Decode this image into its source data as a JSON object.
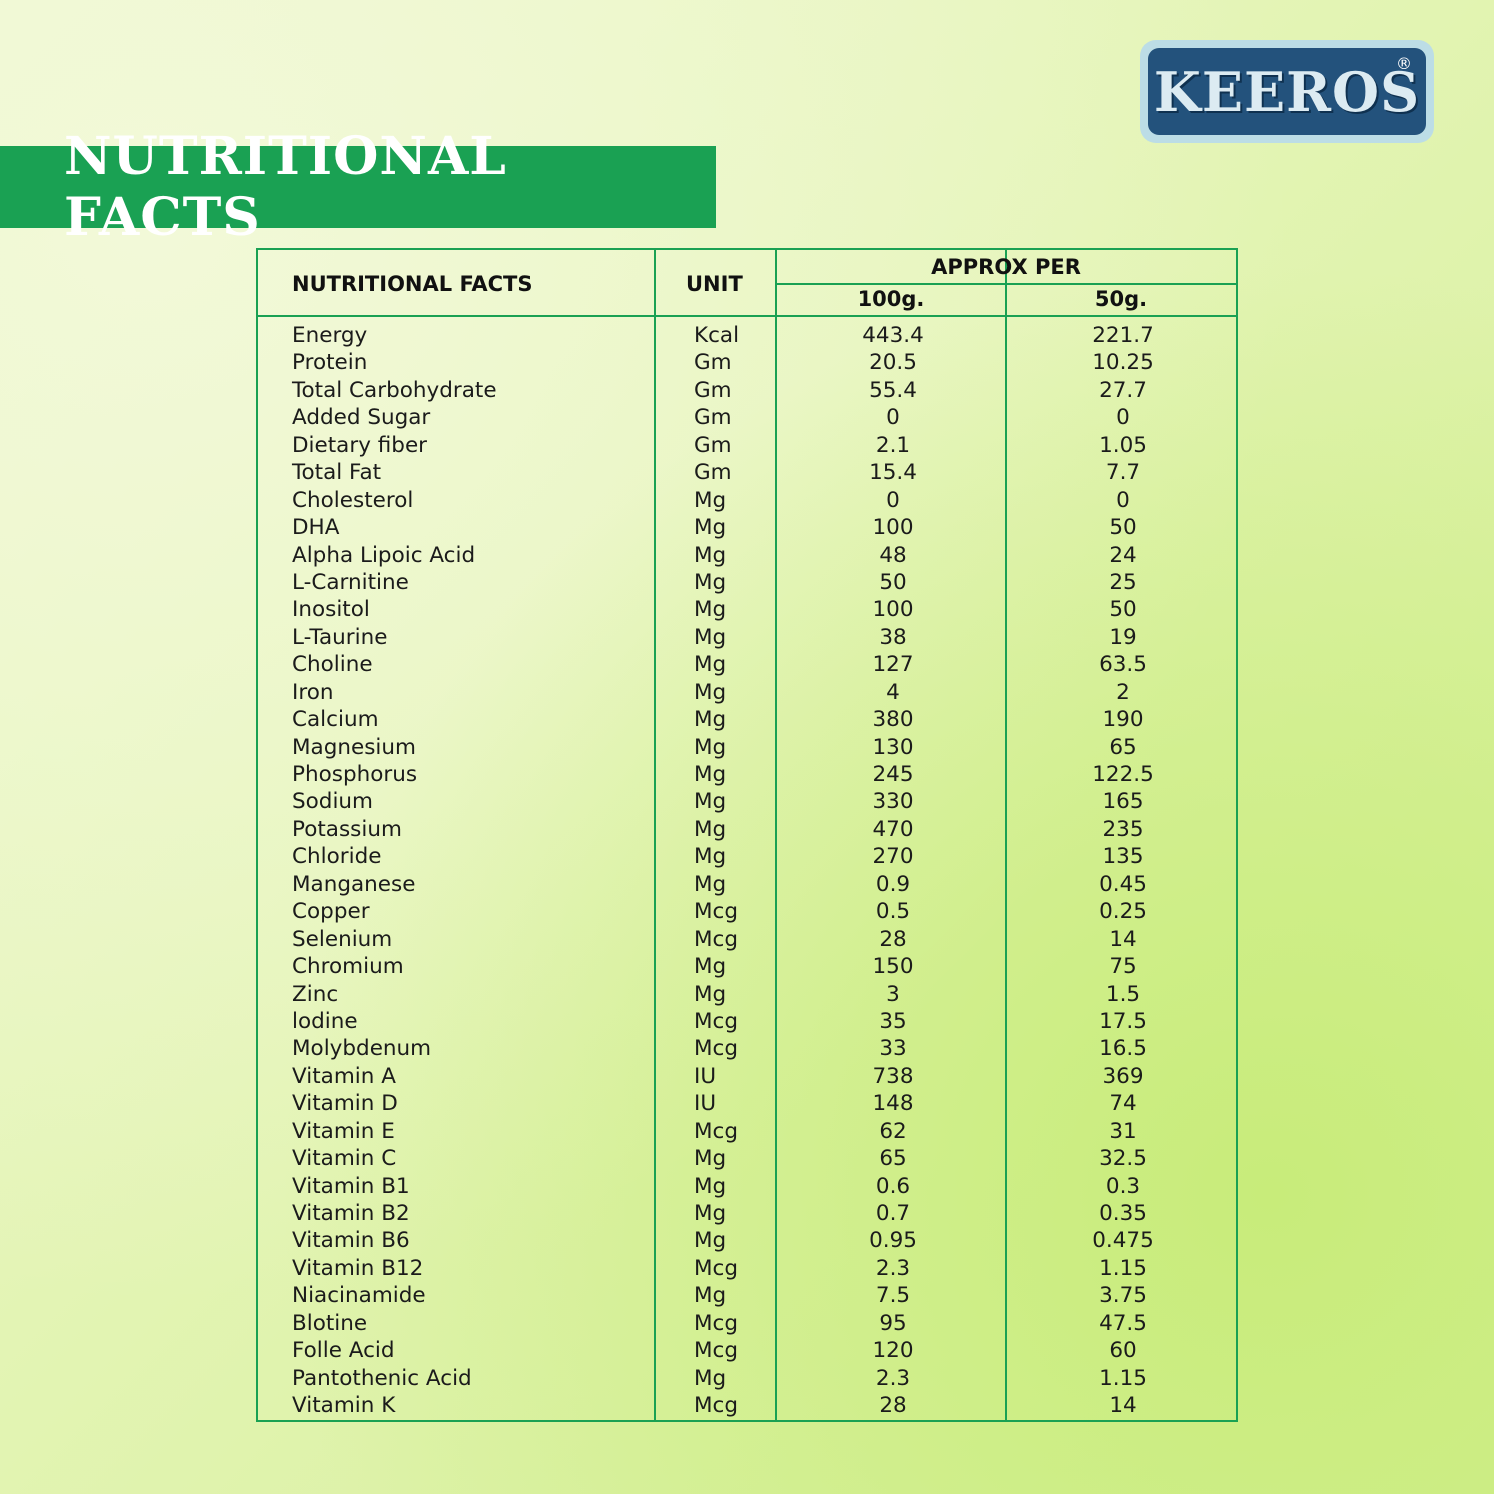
{
  "brand": {
    "logo_text": "KEEROS",
    "reg_mark": "®"
  },
  "banner": {
    "title": "NUTRITIONAL FACTS"
  },
  "table": {
    "headers": {
      "nutrient": "NUTRITIONAL FACTS",
      "unit": "UNIT",
      "approx": "APPROX PER",
      "col_100": "100g.",
      "col_50": "50g."
    },
    "rows": [
      {
        "name": "Energy",
        "unit": "Kcal",
        "v100": "443.4",
        "v50": "221.7"
      },
      {
        "name": "Protein",
        "unit": "Gm",
        "v100": "20.5",
        "v50": "10.25"
      },
      {
        "name": "Total Carbohydrate",
        "unit": "Gm",
        "v100": "55.4",
        "v50": "27.7"
      },
      {
        "name": "Added Sugar",
        "unit": "Gm",
        "v100": "0",
        "v50": "0"
      },
      {
        "name": "Dietary fiber",
        "unit": "Gm",
        "v100": "2.1",
        "v50": "1.05"
      },
      {
        "name": "Total Fat",
        "unit": "Gm",
        "v100": "15.4",
        "v50": "7.7"
      },
      {
        "name": "Cholesterol",
        "unit": "Mg",
        "v100": "0",
        "v50": "0"
      },
      {
        "name": "DHA",
        "unit": "Mg",
        "v100": "100",
        "v50": "50"
      },
      {
        "name": "Alpha Lipoic Acid",
        "unit": "Mg",
        "v100": "48",
        "v50": "24"
      },
      {
        "name": "L-Carnitine",
        "unit": "Mg",
        "v100": "50",
        "v50": "25"
      },
      {
        "name": "Inositol",
        "unit": "Mg",
        "v100": "100",
        "v50": "50"
      },
      {
        "name": "L-Taurine",
        "unit": "Mg",
        "v100": "38",
        "v50": "19"
      },
      {
        "name": "Choline",
        "unit": "Mg",
        "v100": "127",
        "v50": "63.5"
      },
      {
        "name": "Iron",
        "unit": "Mg",
        "v100": "4",
        "v50": "2"
      },
      {
        "name": "Calcium",
        "unit": "Mg",
        "v100": "380",
        "v50": "190"
      },
      {
        "name": "Magnesium",
        "unit": "Mg",
        "v100": "130",
        "v50": "65"
      },
      {
        "name": "Phosphorus",
        "unit": "Mg",
        "v100": "245",
        "v50": "122.5"
      },
      {
        "name": "Sodium",
        "unit": "Mg",
        "v100": "330",
        "v50": "165"
      },
      {
        "name": "Potassium",
        "unit": "Mg",
        "v100": "470",
        "v50": "235"
      },
      {
        "name": "Chloride",
        "unit": "Mg",
        "v100": "270",
        "v50": "135"
      },
      {
        "name": "Manganese",
        "unit": "Mg",
        "v100": "0.9",
        "v50": "0.45"
      },
      {
        "name": "Copper",
        "unit": "Mcg",
        "v100": "0.5",
        "v50": "0.25"
      },
      {
        "name": "Selenium",
        "unit": "Mcg",
        "v100": "28",
        "v50": "14"
      },
      {
        "name": "Chromium",
        "unit": "Mg",
        "v100": "150",
        "v50": "75"
      },
      {
        "name": "Zinc",
        "unit": "Mg",
        "v100": "3",
        "v50": "1.5"
      },
      {
        "name": "lodine",
        "unit": "Mcg",
        "v100": "35",
        "v50": "17.5"
      },
      {
        "name": "Molybdenum",
        "unit": "Mcg",
        "v100": "33",
        "v50": "16.5"
      },
      {
        "name": "Vitamin A",
        "unit": "IU",
        "v100": "738",
        "v50": "369"
      },
      {
        "name": "Vitamin D",
        "unit": "IU",
        "v100": "148",
        "v50": "74"
      },
      {
        "name": "Vitamin E",
        "unit": "Mcg",
        "v100": "62",
        "v50": "31"
      },
      {
        "name": "Vitamin C",
        "unit": "Mg",
        "v100": "65",
        "v50": "32.5"
      },
      {
        "name": "Vitamin B1",
        "unit": "Mg",
        "v100": "0.6",
        "v50": "0.3"
      },
      {
        "name": "Vitamin B2",
        "unit": "Mg",
        "v100": "0.7",
        "v50": "0.35"
      },
      {
        "name": "Vitamin B6",
        "unit": "Mg",
        "v100": "0.95",
        "v50": "0.475"
      },
      {
        "name": "Vitamin B12",
        "unit": "Mcg",
        "v100": "2.3",
        "v50": "1.15"
      },
      {
        "name": "Niacinamide",
        "unit": "Mg",
        "v100": "7.5",
        "v50": "3.75"
      },
      {
        "name": "Blotine",
        "unit": "Mcg",
        "v100": "95",
        "v50": "47.5"
      },
      {
        "name": "Folle Acid",
        "unit": "Mcg",
        "v100": "120",
        "v50": "60"
      },
      {
        "name": "Pantothenic Acid",
        "unit": "Mg",
        "v100": "2.3",
        "v50": "1.15"
      },
      {
        "name": "Vitamin K",
        "unit": "Mcg",
        "v100": "28",
        "v50": "14"
      }
    ]
  }
}
